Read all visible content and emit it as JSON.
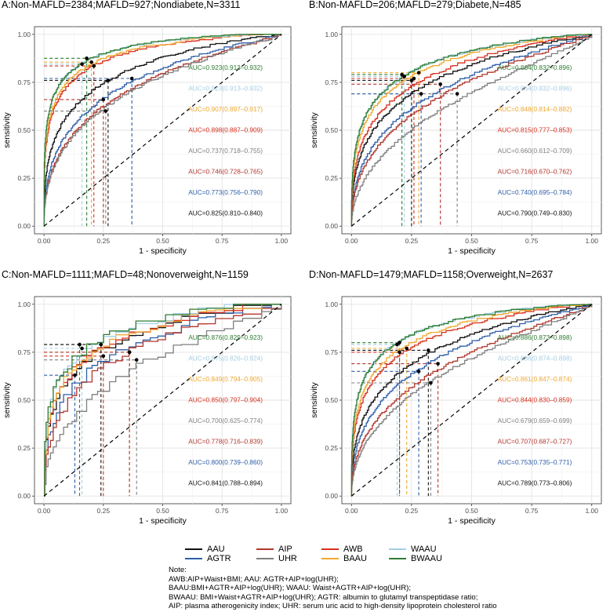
{
  "chart_data": [
    {
      "type": "line",
      "title": "A:Non-MAFLD=2384;MAFLD=927;Nondiabete,N=3311",
      "xlabel": "1 - specificity",
      "ylabel": "sensitivity",
      "xlim": [
        0,
        1
      ],
      "ylim": [
        0,
        1
      ],
      "x_ticks": [
        "0.00",
        "0.25",
        "0.50",
        "0.75",
        "1.00"
      ],
      "y_ticks": [
        "0.00",
        "0.25",
        "0.50",
        "0.75",
        "1.00"
      ],
      "reference_line": "diagonal",
      "series": [
        {
          "name": "BWAAU",
          "auc_label": "AUC=0.923(0.913–0.932)",
          "auc": 0.923,
          "cutoff": [
            0.18,
            0.875
          ],
          "color": "#2e7d32"
        },
        {
          "name": "WAAU",
          "auc_label": "AUC=0.923(0.913–0.932)",
          "auc": 0.923,
          "cutoff": [
            0.16,
            0.845
          ],
          "color": "#a6cee3"
        },
        {
          "name": "BAAU",
          "auc_label": "AUC=0.907(0.897–0.917)",
          "auc": 0.907,
          "cutoff": [
            0.2,
            0.855
          ],
          "color": "#f0a830"
        },
        {
          "name": "AWB",
          "auc_label": "AUC=0.898(0.887–0.909)",
          "auc": 0.898,
          "cutoff": [
            0.21,
            0.835
          ],
          "color": "#d7301f"
        },
        {
          "name": "UHR",
          "auc_label": "AUC=0.737(0.718–0.755)",
          "auc": 0.737,
          "cutoff": [
            0.26,
            0.6
          ],
          "color": "#7f7f7f"
        },
        {
          "name": "AIP",
          "auc_label": "AUC=0.746(0.728–0.765)",
          "auc": 0.746,
          "cutoff": [
            0.25,
            0.66
          ],
          "color": "#b2362c"
        },
        {
          "name": "AGTR",
          "auc_label": "AUC=0.773(0.756–0.790)",
          "auc": 0.773,
          "cutoff": [
            0.37,
            0.77
          ],
          "color": "#2f5fa8"
        },
        {
          "name": "AAU",
          "auc_label": "AUC=0.825(0.810–0.840)",
          "auc": 0.825,
          "cutoff": [
            0.27,
            0.76
          ],
          "color": "#111111"
        }
      ]
    },
    {
      "type": "line",
      "title": "B:Non-MAFLD=206;MAFLD=279;Diabete,N=485",
      "xlabel": "1 - specificity",
      "ylabel": "sensitivity",
      "xlim": [
        0,
        1
      ],
      "ylim": [
        0,
        1
      ],
      "x_ticks": [
        "0.00",
        "0.25",
        "0.50",
        "0.75",
        "1.00"
      ],
      "y_ticks": [
        "0.00",
        "0.25",
        "0.50",
        "0.75",
        "1.00"
      ],
      "reference_line": "diagonal",
      "series": [
        {
          "name": "BWAAU",
          "auc_label": "AUC=0.864(0.832–0.896)",
          "auc": 0.864,
          "cutoff": [
            0.21,
            0.79
          ],
          "color": "#2e7d32"
        },
        {
          "name": "WAAU",
          "auc_label": "AUC=0.864(0.832–0.896)",
          "auc": 0.864,
          "cutoff": [
            0.22,
            0.78
          ],
          "color": "#a6cee3"
        },
        {
          "name": "BAAU",
          "auc_label": "AUC=0.848(0.814–0.882)",
          "auc": 0.848,
          "cutoff": [
            0.28,
            0.8
          ],
          "color": "#f0a830"
        },
        {
          "name": "AWB",
          "auc_label": "AUC=0.815(0.777–0.853)",
          "auc": 0.815,
          "cutoff": [
            0.26,
            0.77
          ],
          "color": "#d7301f"
        },
        {
          "name": "UHR",
          "auc_label": "AUC=0.660(0.612–0.709)",
          "auc": 0.66,
          "cutoff": [
            0.44,
            0.69
          ],
          "color": "#7f7f7f"
        },
        {
          "name": "AIP",
          "auc_label": "AUC=0.716(0.670–0.762)",
          "auc": 0.716,
          "cutoff": [
            0.37,
            0.74
          ],
          "color": "#b2362c"
        },
        {
          "name": "AGTR",
          "auc_label": "AUC=0.740(0.695–0.784)",
          "auc": 0.74,
          "cutoff": [
            0.29,
            0.69
          ],
          "color": "#2f5fa8"
        },
        {
          "name": "AAU",
          "auc_label": "AUC=0.790(0.749–0.830)",
          "auc": 0.79,
          "cutoff": [
            0.25,
            0.76
          ],
          "color": "#111111"
        }
      ]
    },
    {
      "type": "line",
      "title": "C:Non-MAFLD=1111;MAFLD=48;Nonoverweight,N=1159",
      "xlabel": "1 - specificity",
      "ylabel": "sensitivity",
      "xlim": [
        0,
        1
      ],
      "ylim": [
        0,
        1
      ],
      "x_ticks": [
        "0.00",
        "0.25",
        "0.50",
        "0.75",
        "1.00"
      ],
      "y_ticks": [
        "0.00",
        "0.25",
        "0.50",
        "0.75",
        "1.00"
      ],
      "reference_line": "diagonal",
      "series": [
        {
          "name": "BWAAU",
          "auc_label": "AUC=0.876(0.829–0.923)",
          "auc": 0.876,
          "cutoff": [
            0.15,
            0.79
          ],
          "color": "#2e7d32"
        },
        {
          "name": "WAAU",
          "auc_label": "AUC=0.875(0.826–0.924)",
          "auc": 0.875,
          "cutoff": [
            0.16,
            0.77
          ],
          "color": "#a6cee3"
        },
        {
          "name": "BAAU",
          "auc_label": "AUC=0.849(0.794–0.905)",
          "auc": 0.849,
          "cutoff": [
            0.36,
            0.75
          ],
          "color": "#f0a830"
        },
        {
          "name": "AWB",
          "auc_label": "AUC=0.850(0.797–0.904)",
          "auc": 0.85,
          "cutoff": [
            0.25,
            0.73
          ],
          "color": "#d7301f"
        },
        {
          "name": "UHR",
          "auc_label": "AUC=0.700(0.625–0.774)",
          "auc": 0.7,
          "cutoff": [
            0.39,
            0.71
          ],
          "color": "#7f7f7f"
        },
        {
          "name": "AIP",
          "auc_label": "AUC=0.778(0.716–0.839)",
          "auc": 0.778,
          "cutoff": [
            0.36,
            0.75
          ],
          "color": "#b2362c"
        },
        {
          "name": "AGTR",
          "auc_label": "AUC=0.800(0.739–0.860)",
          "auc": 0.8,
          "cutoff": [
            0.13,
            0.63
          ],
          "color": "#2f5fa8"
        },
        {
          "name": "AAU",
          "auc_label": "AUC=0.841(0.788–0.894)",
          "auc": 0.841,
          "cutoff": [
            0.24,
            0.79
          ],
          "color": "#111111"
        }
      ]
    },
    {
      "type": "line",
      "title": "D:Non-MAFLD=1479;MAFLD=1158;Overweight,N=2637",
      "xlabel": "1 - specificity",
      "ylabel": "sensitivity",
      "xlim": [
        0,
        1
      ],
      "ylim": [
        0,
        1
      ],
      "x_ticks": [
        "0.00",
        "0.25",
        "0.50",
        "0.75",
        "1.00"
      ],
      "y_ticks": [
        "0.00",
        "0.25",
        "0.50",
        "0.75",
        "1.00"
      ],
      "reference_line": "diagonal",
      "series": [
        {
          "name": "BWAAU",
          "auc_label": "AUC=0.886(0.873–0.898)",
          "auc": 0.886,
          "cutoff": [
            0.2,
            0.8
          ],
          "color": "#2e7d32"
        },
        {
          "name": "WAAU",
          "auc_label": "AUC=0.886(0.874–0.898)",
          "auc": 0.886,
          "cutoff": [
            0.19,
            0.79
          ],
          "color": "#a6cee3"
        },
        {
          "name": "BAAU",
          "auc_label": "AUC=0.861(0.847–0.874)",
          "auc": 0.861,
          "cutoff": [
            0.23,
            0.77
          ],
          "color": "#f0a830"
        },
        {
          "name": "AWB",
          "auc_label": "AUC=0.844(0.830–0.859)",
          "auc": 0.844,
          "cutoff": [
            0.2,
            0.75
          ],
          "color": "#d7301f"
        },
        {
          "name": "UHR",
          "auc_label": "AUC=0.679(0.659–0.699)",
          "auc": 0.679,
          "cutoff": [
            0.33,
            0.59
          ],
          "color": "#7f7f7f"
        },
        {
          "name": "AIP",
          "auc_label": "AUC=0.707(0.687–0.727)",
          "auc": 0.707,
          "cutoff": [
            0.36,
            0.69
          ],
          "color": "#b2362c"
        },
        {
          "name": "AGTR",
          "auc_label": "AUC=0.753(0.735–0.771)",
          "auc": 0.753,
          "cutoff": [
            0.28,
            0.65
          ],
          "color": "#2f5fa8"
        },
        {
          "name": "AAU",
          "auc_label": "AUC=0.789(0.773–0.806)",
          "auc": 0.789,
          "cutoff": [
            0.32,
            0.76
          ],
          "color": "#111111"
        }
      ]
    }
  ],
  "legend": {
    "items": [
      {
        "name": "AAU",
        "color": "#111111"
      },
      {
        "name": "AGTR",
        "color": "#2f5fa8"
      },
      {
        "name": "AIP",
        "color": "#b2362c"
      },
      {
        "name": "UHR",
        "color": "#7f7f7f"
      },
      {
        "name": "AWB",
        "color": "#d7301f"
      },
      {
        "name": "BAAU",
        "color": "#f0a830"
      },
      {
        "name": "WAAU",
        "color": "#a6cee3"
      },
      {
        "name": "BWAAU",
        "color": "#2e7d32"
      }
    ]
  },
  "notes": {
    "heading": "Note:",
    "lines": [
      "AWB:AIP+Waist+BMI; AAU: AGTR+AIP+log(UHR);",
      "BAAU:BMI+AGTR+AIP+log(UHR); WAAU: Waist+AGTR+AIP+log(UHR);",
      "BWAAU: BMI+Waist+AGTR+AIP+log(UHR); AGTR: albumin to glutamyl transpeptidase ratio;",
      "AIP: plasma atherogenicity index; UHR: serum uric acid to high-density lipoprotein cholesterol ratio"
    ]
  }
}
